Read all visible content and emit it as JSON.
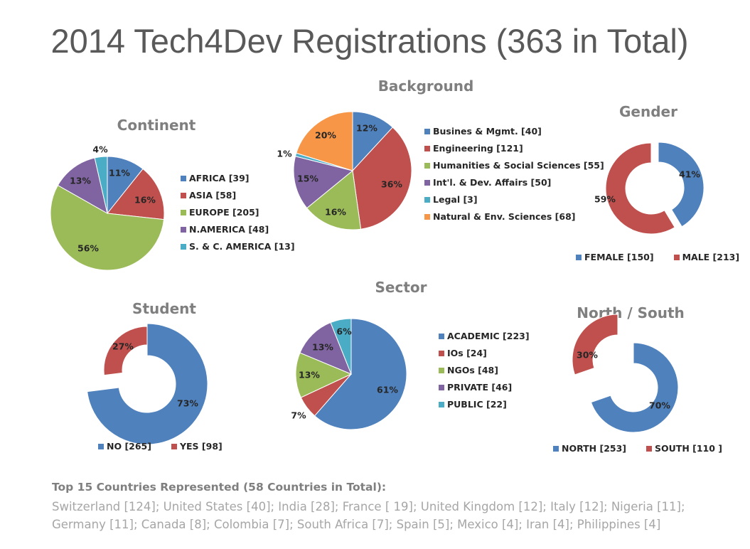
{
  "title": "2014 Tech4Dev Registrations (363 in Total)",
  "colors": {
    "blue": "#4f81bd",
    "red": "#c0504d",
    "green": "#9bbb59",
    "purple": "#8064a2",
    "teal": "#4bacc6",
    "orange": "#f79646"
  },
  "chart_data": [
    {
      "id": "continent",
      "type": "pie",
      "title": "Continent",
      "categories": [
        "AFRICA",
        "ASIA",
        "EUROPE",
        "N.AMERICA",
        "S. & C. AMERICA"
      ],
      "values": [
        39,
        58,
        205,
        48,
        13
      ],
      "data_labels": [
        "11%",
        "16%",
        "56%",
        "13%",
        "4%"
      ],
      "legend": [
        "AFRICA [39]",
        "ASIA [58]",
        "EUROPE [205]",
        "N.AMERICA [48]",
        "S. & C. AMERICA [13]"
      ],
      "colors": [
        "blue",
        "red",
        "green",
        "purple",
        "teal"
      ],
      "legend_position": "right"
    },
    {
      "id": "background",
      "type": "pie",
      "title": "Background",
      "categories": [
        "Busines & Mgmt.",
        "Engineering",
        "Humanities & Social Sciences",
        "Int'l. & Dev. Affairs",
        "Legal",
        "Natural & Env. Sciences"
      ],
      "values": [
        40,
        121,
        55,
        50,
        3,
        68
      ],
      "data_labels": [
        "12%",
        "36%",
        "16%",
        "15%",
        "1%",
        "20%"
      ],
      "legend": [
        "Busines & Mgmt. [40]",
        "Engineering [121]",
        "Humanities & Social Sciences [55]",
        "Int'l. & Dev. Affairs [50]",
        "Legal [3]",
        "Natural & Env. Sciences [68]"
      ],
      "colors": [
        "blue",
        "red",
        "green",
        "purple",
        "teal",
        "orange"
      ],
      "legend_position": "right"
    },
    {
      "id": "gender",
      "type": "donut",
      "title": "Gender",
      "categories": [
        "FEMALE",
        "MALE"
      ],
      "values": [
        150,
        213
      ],
      "data_labels": [
        "41%",
        "59%"
      ],
      "legend": [
        "FEMALE [150]",
        "MALE [213]"
      ],
      "colors": [
        "blue",
        "red"
      ],
      "legend_position": "bottom"
    },
    {
      "id": "student",
      "type": "donut",
      "title": "Student",
      "categories": [
        "NO",
        "YES"
      ],
      "values": [
        265,
        98
      ],
      "data_labels": [
        "73%",
        "27%"
      ],
      "legend": [
        "NO [265]",
        "YES [98]"
      ],
      "colors": [
        "blue",
        "red"
      ],
      "legend_position": "bottom"
    },
    {
      "id": "sector",
      "type": "pie",
      "title": "Sector",
      "categories": [
        "ACADEMIC",
        "IOs",
        "NGOs",
        "PRIVATE",
        "PUBLIC"
      ],
      "values": [
        223,
        24,
        48,
        46,
        22
      ],
      "data_labels": [
        "61%",
        "7%",
        "13%",
        "13%",
        "6%"
      ],
      "legend": [
        "ACADEMIC [223]",
        "IOs [24]",
        "NGOs [48]",
        "PRIVATE [46]",
        "PUBLIC [22]"
      ],
      "colors": [
        "blue",
        "red",
        "green",
        "purple",
        "teal"
      ],
      "legend_position": "right"
    },
    {
      "id": "northsouth",
      "type": "donut",
      "title": "North / South",
      "categories": [
        "NORTH",
        "SOUTH"
      ],
      "values": [
        253,
        110
      ],
      "data_labels": [
        "70%",
        "30%"
      ],
      "legend": [
        "NORTH [253]",
        "SOUTH [110 ]"
      ],
      "colors": [
        "blue",
        "red"
      ],
      "legend_position": "bottom"
    }
  ],
  "footer": {
    "heading": "Top 15 Countries Represented (58 Countries in Total):",
    "list": "Switzerland [124]; United States [40]; India [28]; France [ 19]; United Kingdom [12]; Italy [12]; Nigeria [11]; Germany [11]; Canada [8]; Colombia [7]; South Africa [7]; Spain [5]; Mexico [4]; Iran [4]; Philippines [4]"
  }
}
